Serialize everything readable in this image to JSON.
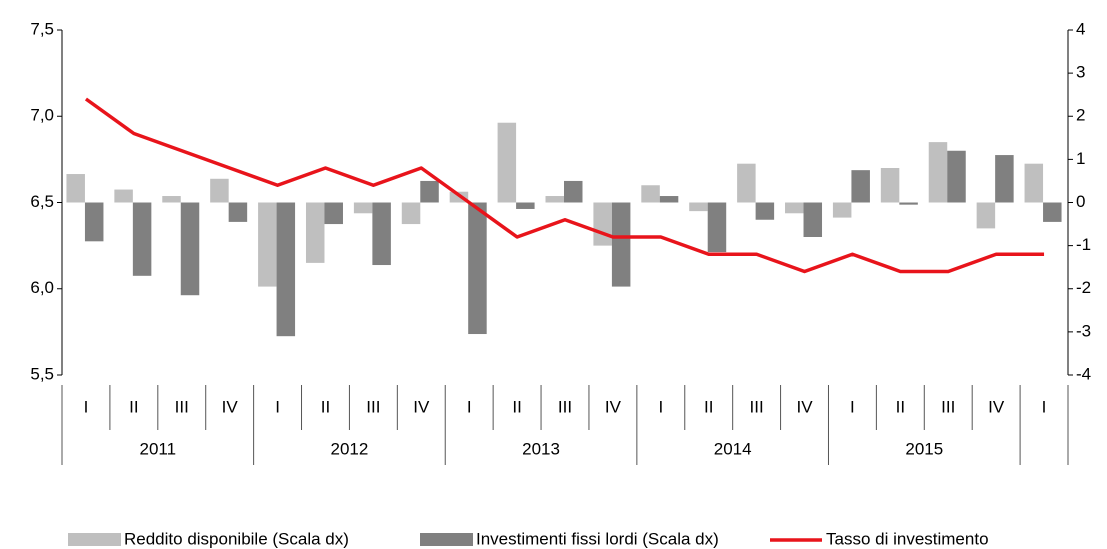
{
  "chart_data": {
    "type": "bar_line",
    "categories": [
      "I",
      "II",
      "III",
      "IV",
      "I",
      "II",
      "III",
      "IV",
      "I",
      "II",
      "III",
      "IV",
      "I",
      "II",
      "III",
      "IV",
      "I",
      "II",
      "III",
      "IV",
      "I"
    ],
    "groups": [
      "2011",
      "2012",
      "2013",
      "2014",
      "2015"
    ],
    "series": [
      {
        "name": "Reddito disponibile (Scala dx)",
        "type": "bar",
        "axis": "y2",
        "color": "#bfbfbf",
        "values": [
          0.66,
          0.3,
          0.15,
          0.55,
          -1.95,
          -1.4,
          -0.25,
          -0.5,
          0.25,
          1.85,
          0.15,
          -1.0,
          0.4,
          -0.2,
          0.9,
          -0.25,
          -0.35,
          0.8,
          1.4,
          -0.6,
          0.9
        ]
      },
      {
        "name": "Investimenti fissi lordi (Scala dx)",
        "type": "bar",
        "axis": "y2",
        "color": "#808080",
        "values": [
          -0.9,
          -1.7,
          -2.15,
          -0.45,
          -3.1,
          -0.5,
          -1.45,
          0.5,
          -3.05,
          -0.15,
          0.5,
          -1.95,
          0.15,
          -1.15,
          -0.4,
          -0.8,
          0.75,
          -0.05,
          1.2,
          1.1,
          -0.45
        ]
      },
      {
        "name": "Tasso di investimento",
        "type": "line",
        "axis": "y",
        "color": "#e8141b",
        "values": [
          7.1,
          6.9,
          6.8,
          6.7,
          6.6,
          6.7,
          6.6,
          6.7,
          6.5,
          6.3,
          6.4,
          6.3,
          6.3,
          6.2,
          6.2,
          6.1,
          6.2,
          6.1,
          6.1,
          6.2,
          6.2
        ]
      }
    ],
    "ylim": [
      5.5,
      7.5
    ],
    "yticks": [
      {
        "value": 5.5,
        "label": "5,5"
      },
      {
        "value": 6.0,
        "label": "6,0"
      },
      {
        "value": 6.5,
        "label": "6,5"
      },
      {
        "value": 7.0,
        "label": "7,0"
      },
      {
        "value": 7.5,
        "label": "7,5"
      }
    ],
    "y2lim": [
      -4,
      4
    ],
    "y2ticks": [
      -4,
      -3,
      -2,
      -1,
      0,
      1,
      2,
      3,
      4
    ],
    "legend": "bottom"
  }
}
